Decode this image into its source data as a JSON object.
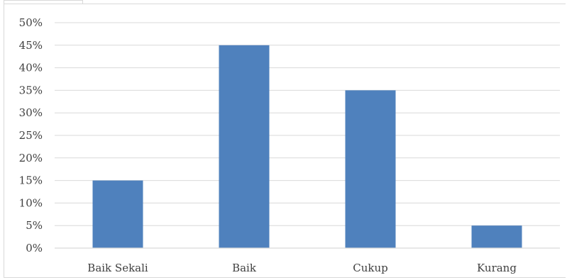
{
  "chart_data": {
    "type": "bar",
    "categories": [
      "Baik Sekali",
      "Baik",
      "Cukup",
      "Kurang"
    ],
    "values": [
      15,
      45,
      35,
      5
    ],
    "y_ticks": [
      "0%",
      "5%",
      "10%",
      "15%",
      "20%",
      "25%",
      "30%",
      "35%",
      "40%",
      "45%",
      "50%"
    ],
    "ylim": [
      0,
      50
    ],
    "ytick_step": 5,
    "y_unit": "%",
    "grid": true,
    "legend": "none",
    "bar_color": "#4f81bd",
    "grid_color": "#d9d9d9"
  }
}
